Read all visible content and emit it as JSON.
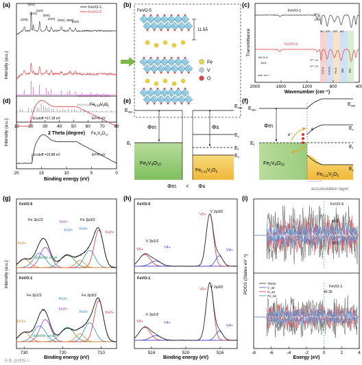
{
  "panels": {
    "a": {
      "label": "(a)",
      "chart_data": {
        "type": "line",
        "xlabel": "2 Theta (degree)",
        "ylabel": "Intensity (a.u.)",
        "xlim": [
          10,
          80
        ],
        "x_ticks": [
          10,
          20,
          30,
          40,
          50,
          60,
          70,
          80
        ],
        "series": [
          {
            "name": "FeVO-1",
            "color": "#333333"
          },
          {
            "name": "FeVO-5",
            "color": "#e23a3a"
          }
        ],
        "peak_labels": [
          {
            "text": "(001)",
            "x": 20.4
          },
          {
            "text": "(200)",
            "x": 15.5
          },
          {
            "text": "(101)",
            "x": 21.8
          },
          {
            "text": "(110)",
            "x": 26.2
          },
          {
            "text": "(400)",
            "x": 31.0
          },
          {
            "text": "(310)",
            "x": 34.4
          },
          {
            "text": "(002)",
            "x": 41.3
          },
          {
            "text": "(600)",
            "x": 47.5
          },
          {
            "text": "(020)",
            "x": 51.2
          }
        ],
        "ref_patterns": [
          {
            "name": "Fe0.12V2O5",
            "pdf": "PDF#38-0093",
            "color": "#e040e0",
            "lines": [
              [
                15.4,
                0.35
              ],
              [
                20.3,
                1.0
              ],
              [
                21.7,
                0.55
              ],
              [
                26.1,
                0.7
              ],
              [
                31.0,
                0.5
              ],
              [
                32.4,
                0.25
              ],
              [
                34.3,
                0.4
              ],
              [
                41.3,
                0.3
              ],
              [
                45.5,
                0.2
              ],
              [
                47.3,
                0.3
              ],
              [
                51.2,
                0.25
              ],
              [
                55.7,
                0.15
              ],
              [
                62.0,
                0.15
              ],
              [
                66.5,
                0.12
              ],
              [
                71.0,
                0.1
              ]
            ]
          },
          {
            "name": "Fe2V4O10",
            "pdf": "PDF#38-0093",
            "color": "#888888",
            "lines": [
              [
                12.5,
                0.3
              ],
              [
                14.2,
                0.25
              ],
              [
                18.5,
                0.4
              ],
              [
                20.6,
                0.3
              ],
              [
                22.4,
                0.5
              ],
              [
                24.5,
                0.45
              ],
              [
                25.8,
                0.35
              ],
              [
                27.3,
                0.8
              ],
              [
                28.9,
                0.6
              ],
              [
                30.2,
                0.5
              ],
              [
                31.5,
                0.35
              ],
              [
                32.8,
                0.4
              ],
              [
                34.6,
                0.3
              ],
              [
                36.1,
                0.25
              ],
              [
                38.4,
                0.3
              ],
              [
                40.5,
                0.2
              ],
              [
                42.3,
                0.25
              ],
              [
                44.0,
                0.2
              ],
              [
                46.2,
                0.3
              ],
              [
                48.7,
                0.2
              ],
              [
                50.5,
                0.25
              ],
              [
                52.1,
                0.15
              ],
              [
                55.0,
                0.2
              ],
              [
                57.3,
                0.15
              ],
              [
                60.4,
                0.15
              ],
              [
                63.1,
                0.12
              ],
              [
                66.0,
                0.12
              ],
              [
                69.5,
                0.1
              ],
              [
                73.0,
                0.1
              ],
              [
                76.5,
                0.1
              ]
            ]
          }
        ]
      }
    },
    "b": {
      "label": "(b)",
      "title": "FeVO-5",
      "spacing": "11.5Å",
      "legend": [
        {
          "name": "Fe",
          "color": "#e8d23a"
        },
        {
          "name": "V",
          "color": "#b8c8d8"
        },
        {
          "name": "O",
          "color": "#e04040"
        }
      ]
    },
    "c": {
      "label": "(c)",
      "chart_data": {
        "type": "line",
        "xlabel": "Wavenumber (cm⁻¹)",
        "ylabel": "Transmittance",
        "xlim": [
          2000,
          400
        ],
        "x_ticks": [
          2000,
          1600,
          1200,
          800,
          400
        ],
        "series": [
          {
            "name": "FeVO-1",
            "color": "#333333"
          },
          {
            "name": "FeVO-5",
            "color": "#e23a3a"
          }
        ],
        "annotations": [
          "1617",
          "1045",
          "δH-O-H",
          "1621",
          "unit: cm⁻¹",
          "V⁵⁺=O",
          "V⁴⁺=O",
          "V-O-V",
          "V-O-Fe",
          "Fe-O",
          "986",
          "893",
          "781",
          "679",
          "523",
          "452"
        ],
        "bands": [
          {
            "from": 1000,
            "to": 900,
            "color": "#f7c6c6"
          },
          {
            "from": 900,
            "to": 800,
            "color": "#c6d8f2"
          },
          {
            "from": 800,
            "to": 700,
            "color": "#f5dcb8"
          },
          {
            "from": 700,
            "to": 580,
            "color": "#c6d8f2"
          },
          {
            "from": 580,
            "to": 480,
            "color": "#cfe8c6"
          }
        ]
      }
    },
    "d": {
      "label": "(d)",
      "chart_data": {
        "type": "line",
        "xlabel": "Binding energy (eV)",
        "ylabel": "Intensity (a.u.)",
        "xlim": [
          20,
          0
        ],
        "x_ticks": [
          20,
          15,
          10,
          5,
          0
        ],
        "series": [
          {
            "name": "Fe0.12V2O5",
            "color": "#e23a3a",
            "cutoff": "Ecutoff =17.18 eV",
            "ef": "EF=0 eV"
          },
          {
            "name": "Fe2V4O10",
            "color": "#222222",
            "cutoff": "Ecutoff =16.88 eV",
            "ef": "EF=0 eV"
          }
        ]
      }
    },
    "e": {
      "label": "(e)",
      "left_material": "Fe2V4O10",
      "right_material": "Fe0.12V2O5",
      "evac_left": "Evac",
      "evac_right": "Evac",
      "phi_m": "Φm",
      "phi_s": "Φs",
      "ef_left": "Ef",
      "ef_right": "Ef",
      "ec": "Ec",
      "ev": "Ev",
      "compare_left": "Φm",
      "compare_op": "<",
      "compare_right": "Φs"
    },
    "f": {
      "label": "(f)",
      "left_material": "Fe2V4O10",
      "right_material": "Fe0.12V2O5",
      "evac_left": "Evac",
      "evac_right": "Evac",
      "phi_m": "Φm",
      "ef_left": "Ef",
      "ef_right": "Ef",
      "ec": "Ec",
      "ev": "Ev",
      "electron": "e⁻",
      "layer_label": "accumulation layer"
    },
    "g": {
      "label": "(g)",
      "chart_data": {
        "type": "line",
        "xlabel": "Binding energy (eV)",
        "ylabel": "Intensity (a.u.)",
        "xlim": [
          732,
          706
        ],
        "x_ticks": [
          730,
          720,
          710
        ],
        "subplots": [
          {
            "name": "FeVO-5",
            "labels": [
              "Fe 2p1/2",
              "Fe 2p3/2",
              "Fe2+",
              "Fe3+",
              "Fe3+",
              "Fe2+",
              "Fe2+",
              "statellite peak"
            ]
          },
          {
            "name": "FeVO-1",
            "labels": [
              "Fe 2p1/2",
              "Fe 2p3/2",
              "Fe3+",
              "Fe3+",
              "Fe2+",
              "Fe2+",
              "Fe2+",
              "statellite peak"
            ]
          }
        ]
      }
    },
    "h": {
      "label": "(h)",
      "chart_data": {
        "type": "line",
        "xlabel": "Binding energy (eV)",
        "ylabel": "",
        "xlim": [
          526,
          514
        ],
        "x_ticks": [
          524,
          520,
          516
        ],
        "subplots": [
          {
            "name": "FeVO-5",
            "labels": [
              "V 2p3/2",
              "V5+",
              "V 2p1/2",
              "V5+",
              "V4+",
              "V4+"
            ]
          },
          {
            "name": "FeVO-1",
            "labels": [
              "V 2p3/2",
              "V5+",
              "V 2p1/2",
              "V5+",
              "V4+",
              "V4+"
            ]
          }
        ]
      }
    },
    "i": {
      "label": "(i)",
      "chart_data": {
        "type": "line",
        "xlabel": "Energy (eV)",
        "ylabel": "PDOS (States·eV⁻¹)",
        "xlim": [
          -8,
          4
        ],
        "x_ticks": [
          -8,
          -6,
          -4,
          -2,
          0,
          2,
          4
        ],
        "subplots": [
          {
            "name": "FeVO-5",
            "annotations": [
              "42.5",
              "29.2"
            ]
          },
          {
            "name": "FeVO-1",
            "annotations": [
              "40.35"
            ]
          }
        ],
        "legend": [
          {
            "name": "TDOS",
            "color": "#555555"
          },
          {
            "name": "V_3d",
            "color": "#7b6fe0"
          },
          {
            "name": "O_2p",
            "color": "#e05555"
          },
          {
            "name": "Fe_3d",
            "color": "#55aadd"
          }
        ]
      }
    }
  },
  "watermark": "头条 @材料人"
}
